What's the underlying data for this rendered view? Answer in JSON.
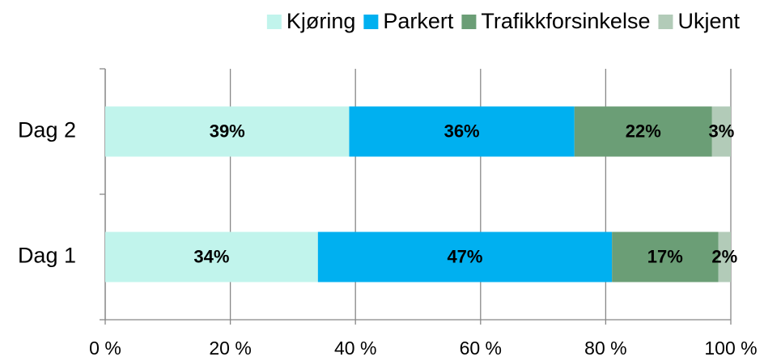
{
  "chart_data": {
    "type": "stacked_bar_horizontal",
    "categories": [
      "Dag 1",
      "Dag 2"
    ],
    "series": [
      {
        "name": "Kjøring",
        "color": "#c1f4ec",
        "values": [
          34,
          39
        ],
        "value_labels": [
          "34%",
          "39%"
        ]
      },
      {
        "name": "Parkert",
        "color": "#00b0f0",
        "values": [
          47,
          36
        ],
        "value_labels": [
          "47%",
          "36%"
        ]
      },
      {
        "name": "Trafikkforsinkelse",
        "color": "#6b9e76",
        "values": [
          17,
          22
        ],
        "value_labels": [
          "17%",
          "22%"
        ]
      },
      {
        "name": "Ukjent",
        "color": "#b2cbb8",
        "values": [
          2,
          3
        ],
        "value_labels": [
          "2%",
          "3%"
        ]
      }
    ],
    "xlim": [
      0,
      100
    ],
    "xticks": [
      {
        "value": 0,
        "label": "0 %"
      },
      {
        "value": 20,
        "label": "20 %"
      },
      {
        "value": 40,
        "label": "40 %"
      },
      {
        "value": 60,
        "label": "60 %"
      },
      {
        "value": 80,
        "label": "80 %"
      },
      {
        "value": 100,
        "label": "100 %"
      }
    ],
    "grid": true,
    "legend": "top"
  }
}
